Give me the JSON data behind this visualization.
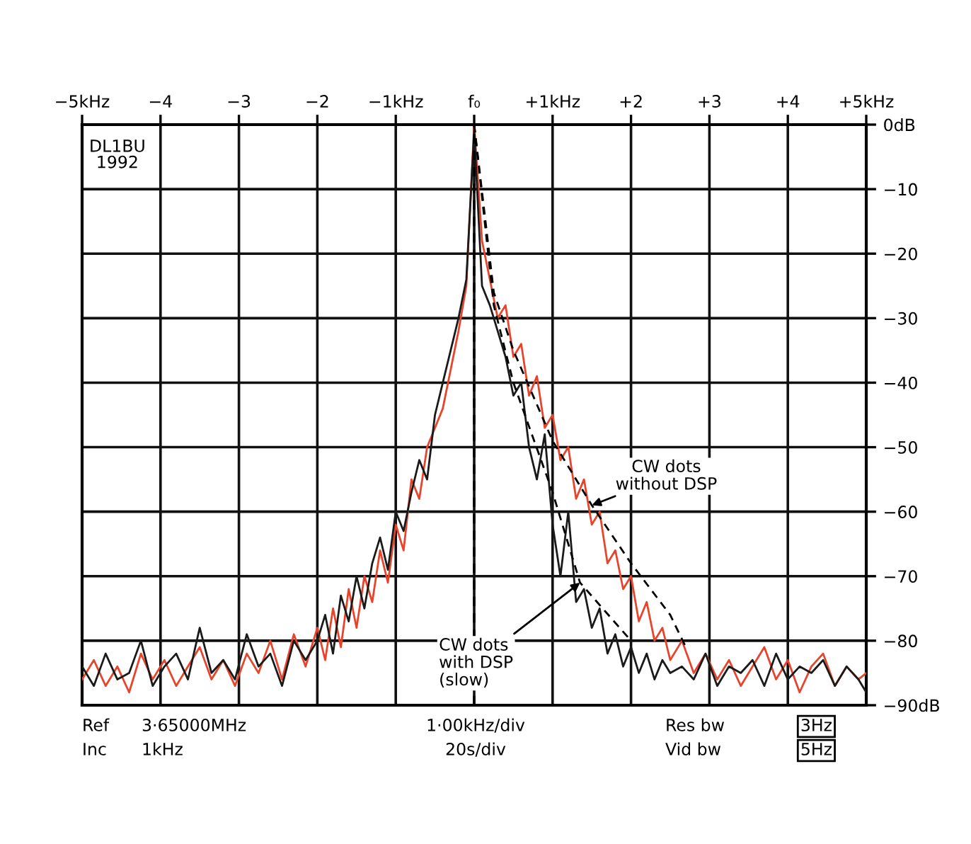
{
  "chart_data": {
    "type": "line",
    "xlim": [
      -5,
      5
    ],
    "ylim": [
      -90,
      0
    ],
    "xticks": [
      {
        "value": -5,
        "label": "−5kHz"
      },
      {
        "value": -4,
        "label": "−4"
      },
      {
        "value": -3,
        "label": "−3"
      },
      {
        "value": -2,
        "label": "−2"
      },
      {
        "value": -1,
        "label": "−1kHz"
      },
      {
        "value": 0,
        "label": "f₀"
      },
      {
        "value": 1,
        "label": "+1kHz"
      },
      {
        "value": 2,
        "label": "+2"
      },
      {
        "value": 3,
        "label": "+3"
      },
      {
        "value": 4,
        "label": "+4"
      },
      {
        "value": 5,
        "label": "+5kHz"
      }
    ],
    "yticks": [
      {
        "value": 0,
        "label": "0dB"
      },
      {
        "value": -10,
        "label": "−10"
      },
      {
        "value": -20,
        "label": "−20"
      },
      {
        "value": -30,
        "label": "−30"
      },
      {
        "value": -40,
        "label": "−40"
      },
      {
        "value": -50,
        "label": "−50"
      },
      {
        "value": -60,
        "label": "−60"
      },
      {
        "value": -70,
        "label": "−70"
      },
      {
        "value": -80,
        "label": "−80"
      },
      {
        "value": -90,
        "label": "−90dB"
      }
    ],
    "grid": true,
    "marker": "none",
    "series": [
      {
        "color": "#e8442c",
        "line_style": "solid",
        "x": [
          -5,
          -4.85,
          -4.7,
          -4.55,
          -4.4,
          -4.25,
          -4.1,
          -3.95,
          -3.8,
          -3.65,
          -3.5,
          -3.35,
          -3.2,
          -3.05,
          -2.9,
          -2.75,
          -2.6,
          -2.45,
          -2.3,
          -2.15,
          -2.0,
          -1.9,
          -1.8,
          -1.7,
          -1.6,
          -1.5,
          -1.4,
          -1.3,
          -1.2,
          -1.1,
          -1.0,
          -0.9,
          -0.8,
          -0.7,
          -0.6,
          -0.5,
          -0.4,
          -0.3,
          -0.2,
          -0.1,
          0,
          0.1,
          0.2,
          0.3,
          0.4,
          0.5,
          0.6,
          0.7,
          0.8,
          0.9,
          1.0,
          1.1,
          1.2,
          1.3,
          1.4,
          1.5,
          1.6,
          1.7,
          1.8,
          1.9,
          2.0,
          2.1,
          2.2,
          2.3,
          2.4,
          2.5,
          2.65,
          2.8,
          2.95,
          3.1,
          3.25,
          3.4,
          3.55,
          3.7,
          3.85,
          4.0,
          4.15,
          4.3,
          4.45,
          4.6,
          4.75,
          4.9,
          5.0
        ],
        "values": [
          -86,
          -83,
          -87,
          -84,
          -88,
          -82,
          -86,
          -83,
          -87,
          -84,
          -81,
          -86,
          -83,
          -87,
          -82,
          -85,
          -80,
          -86,
          -79,
          -84,
          -78,
          -83,
          -75,
          -81,
          -72,
          -78,
          -70,
          -74,
          -66,
          -71,
          -62,
          -66,
          -55,
          -58,
          -50,
          -47,
          -44,
          -38,
          -32,
          -25,
          0,
          -18,
          -24,
          -30,
          -28,
          -36,
          -34,
          -42,
          -39,
          -47,
          -45,
          -52,
          -50,
          -58,
          -55,
          -62,
          -60,
          -68,
          -66,
          -72,
          -70,
          -77,
          -74,
          -80,
          -78,
          -83,
          -80,
          -85,
          -82,
          -86,
          -83,
          -87,
          -84,
          -81,
          -86,
          -83,
          -88,
          -84,
          -82,
          -87,
          -84,
          -86,
          -85
        ]
      },
      {
        "color": "#1a1a1a",
        "line_style": "solid",
        "x": [
          -5,
          -4.85,
          -4.7,
          -4.55,
          -4.4,
          -4.25,
          -4.1,
          -3.95,
          -3.8,
          -3.65,
          -3.5,
          -3.35,
          -3.2,
          -3.05,
          -2.9,
          -2.75,
          -2.6,
          -2.45,
          -2.3,
          -2.15,
          -2.0,
          -1.9,
          -1.8,
          -1.7,
          -1.6,
          -1.5,
          -1.4,
          -1.3,
          -1.2,
          -1.1,
          -1.0,
          -0.9,
          -0.8,
          -0.7,
          -0.6,
          -0.5,
          -0.4,
          -0.3,
          -0.2,
          -0.1,
          0,
          0.1,
          0.2,
          0.3,
          0.4,
          0.5,
          0.6,
          0.7,
          0.8,
          0.9,
          1.0,
          1.1,
          1.2,
          1.3,
          1.4,
          1.5,
          1.6,
          1.7,
          1.8,
          1.9,
          2.0,
          2.1,
          2.2,
          2.3,
          2.4,
          2.5,
          2.65,
          2.8,
          2.95,
          3.1,
          3.25,
          3.4,
          3.55,
          3.7,
          3.85,
          4.0,
          4.15,
          4.3,
          4.45,
          4.6,
          4.75,
          4.9,
          5.0
        ],
        "values": [
          -84,
          -87,
          -82,
          -86,
          -85,
          -80,
          -87,
          -84,
          -82,
          -86,
          -78,
          -85,
          -83,
          -86,
          -79,
          -84,
          -82,
          -87,
          -80,
          -83,
          -80,
          -76,
          -82,
          -73,
          -77,
          -70,
          -75,
          -68,
          -64,
          -69,
          -60,
          -63,
          -57,
          -52,
          -55,
          -45,
          -40,
          -35,
          -30,
          -24,
          -1,
          -25,
          -28,
          -32,
          -36,
          -42,
          -40,
          -50,
          -55,
          -48,
          -62,
          -70,
          -60,
          -74,
          -72,
          -78,
          -75,
          -82,
          -79,
          -84,
          -81,
          -85,
          -82,
          -86,
          -83,
          -85,
          -84,
          -86,
          -82,
          -87,
          -84,
          -85,
          -83,
          -87,
          -82,
          -86,
          -84,
          -85,
          -83,
          -87,
          -84,
          -86,
          -88
        ]
      },
      {
        "color": "#000000",
        "line_style": "dashed",
        "x": [
          0,
          0.25,
          0.5,
          1,
          1.5,
          2,
          2.5,
          2.7
        ],
        "values": [
          0,
          -26,
          -35,
          -49,
          -59,
          -68,
          -76,
          -81
        ]
      },
      {
        "color": "#000000",
        "line_style": "dashed",
        "x": [
          0,
          0.25,
          0.5,
          1,
          1.35,
          2
        ],
        "values": [
          0,
          -28,
          -40,
          -57,
          -71,
          -80
        ]
      }
    ],
    "ref_lines": [
      {
        "axis": "x",
        "value": 0,
        "color": "#000000",
        "line_style": "dashed"
      }
    ],
    "annotations": [
      "DL1BU\n1992",
      {
        "text": "CW dots\nwithout DSP",
        "x": 1.5,
        "y": -59
      },
      {
        "text": "CW dots\nwith DSP\n(slow)",
        "x": 1.35,
        "y": -71
      },
      "Ref",
      "3·65000MHz",
      "Inc",
      "1kHz",
      "1·00kHz/div",
      "20s/div",
      "Res bw",
      "3Hz",
      "Vid bw",
      "5Hz"
    ]
  }
}
